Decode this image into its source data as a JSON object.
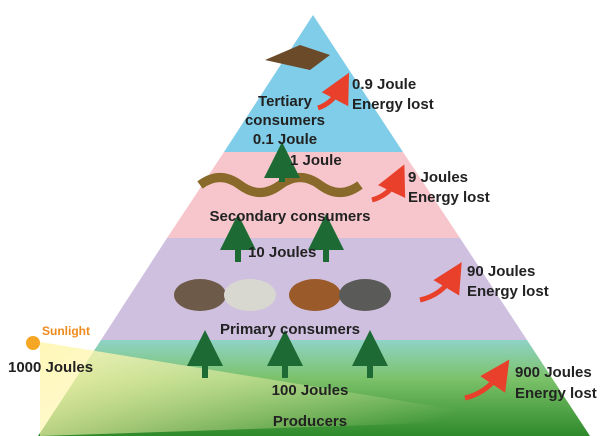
{
  "levels": [
    {
      "name": [
        "Tertiary",
        "consumers"
      ],
      "energy": "0.1 Joule",
      "loss": [
        "0.9 Joule",
        "Energy lost"
      ]
    },
    {
      "name": [
        "Secondary consumers"
      ],
      "energy": "1 Joule",
      "loss": [
        "9 Joules",
        "Energy lost"
      ]
    },
    {
      "name": [
        "Primary consumers"
      ],
      "energy": "10 Joules",
      "loss": [
        "90 Joules",
        "Energy lost"
      ]
    },
    {
      "name": [
        "Producers"
      ],
      "energy": "100 Joules",
      "loss": [
        "900 Joules",
        "Energy lost"
      ]
    }
  ],
  "sunlight": {
    "label": "Sunlight",
    "energy": "1000 Joules"
  }
}
